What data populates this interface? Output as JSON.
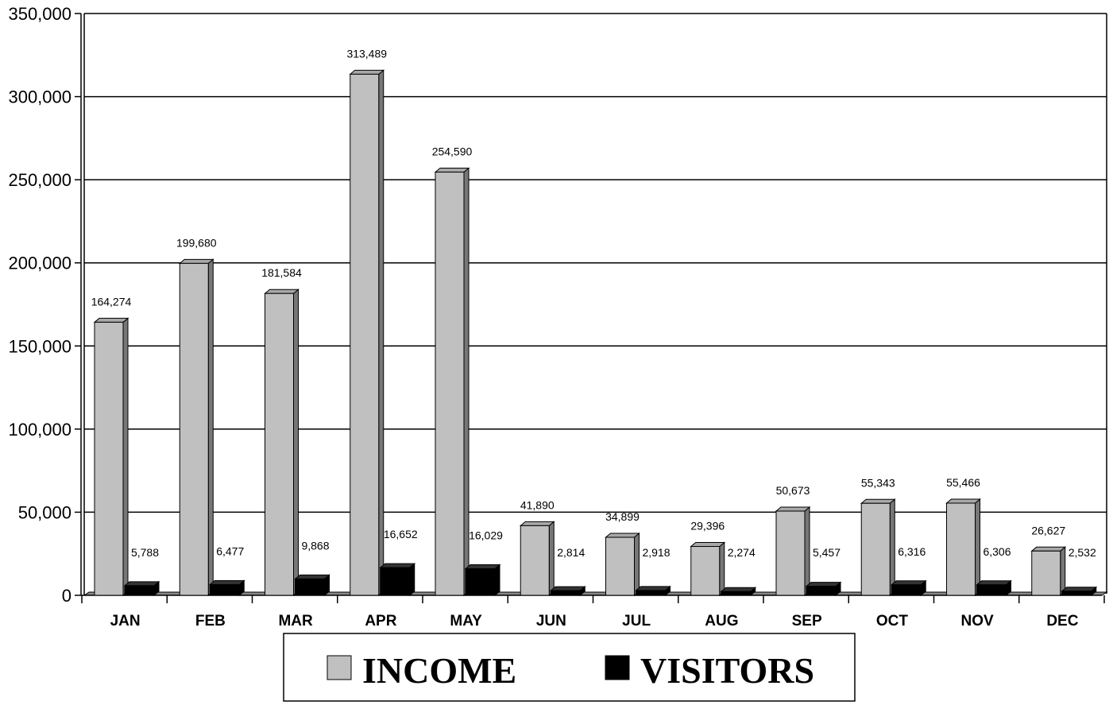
{
  "chart_data": {
    "type": "bar",
    "categories": [
      "JAN",
      "FEB",
      "MAR",
      "APR",
      "MAY",
      "JUN",
      "JUL",
      "AUG",
      "SEP",
      "OCT",
      "NOV",
      "DEC"
    ],
    "series": [
      {
        "name": "INCOME",
        "color": "#c0c0c0",
        "values": [
          164274,
          199680,
          181584,
          313489,
          254590,
          41890,
          34899,
          29396,
          50673,
          55343,
          55466,
          26627
        ],
        "labels": [
          "164,274",
          "199,680",
          "181,584",
          "313,489",
          "254,590",
          "41,890",
          "34,899",
          "29,396",
          "50,673",
          "55,343",
          "55,466",
          "26,627"
        ]
      },
      {
        "name": "VISITORS",
        "color": "#000000",
        "values": [
          5788,
          6477,
          9868,
          16652,
          16029,
          2814,
          2918,
          2274,
          5457,
          6316,
          6306,
          2532
        ],
        "labels": [
          "5,788",
          "6,477",
          "9,868",
          "16,652",
          "16,029",
          "2,814",
          "2,918",
          "2,274",
          "5,457",
          "6,316",
          "6,306",
          "2,532"
        ]
      }
    ],
    "yticks": [
      0,
      50000,
      100000,
      150000,
      200000,
      250000,
      300000,
      350000
    ],
    "ytick_labels": [
      "0",
      "50,000",
      "100,000",
      "150,000",
      "200,000",
      "250,000",
      "300,000",
      "350,000"
    ],
    "ylim": [
      0,
      350000
    ],
    "grid": true,
    "legend": "bottom"
  }
}
